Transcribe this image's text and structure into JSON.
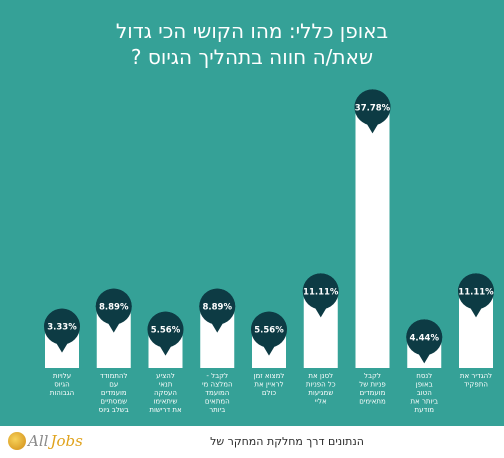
{
  "header": {
    "title_line1": "באופן כללי: מהו הקושי הכי גדול",
    "title_line2": "שאת/ה חווה בתהליך הגיוס ?"
  },
  "footer": {
    "credit_text": "הנתונים דרך מחלקת המחקר של",
    "logo_all": "All",
    "logo_jobs": "Jobs"
  },
  "chart_data": {
    "type": "bar",
    "title": "באופן כללי: מהו הקושי הכי גדול שאת/ה חווה בתהליך הגיוס ?",
    "ylim": [
      0,
      40
    ],
    "grid": false,
    "bar_color": "#ffffff",
    "bubble_color": "#0d3b44",
    "categories": [
      "עלויות הגיוס הגבוהות",
      "להתמודד עם מועמדים שמסתיים בשלב גיוס מתקדם",
      "להציע תנאי העסקה שיתאימו את דרישות המועמד",
      "לקבל - המלצה מי המועמד המתאים ביותר לתפקיד",
      "למצוא זמן לראיין את כולם",
      "לסנן את כל הפניות שמגיעות אליי",
      "לקבל פניות של מועמדים מתאימים",
      "לנסח באופן הטוב ביותר את מודעת הדרושים",
      "להגדיר את התפקיד"
    ],
    "values": [
      3.33,
      8.89,
      5.56,
      8.89,
      5.56,
      11.11,
      37.78,
      4.44,
      11.11
    ],
    "value_labels": [
      "3.33%",
      "8.89%",
      "5.56%",
      "8.89%",
      "5.56%",
      "11.11%",
      "37.78%",
      "4.44%",
      "11.11%"
    ]
  }
}
